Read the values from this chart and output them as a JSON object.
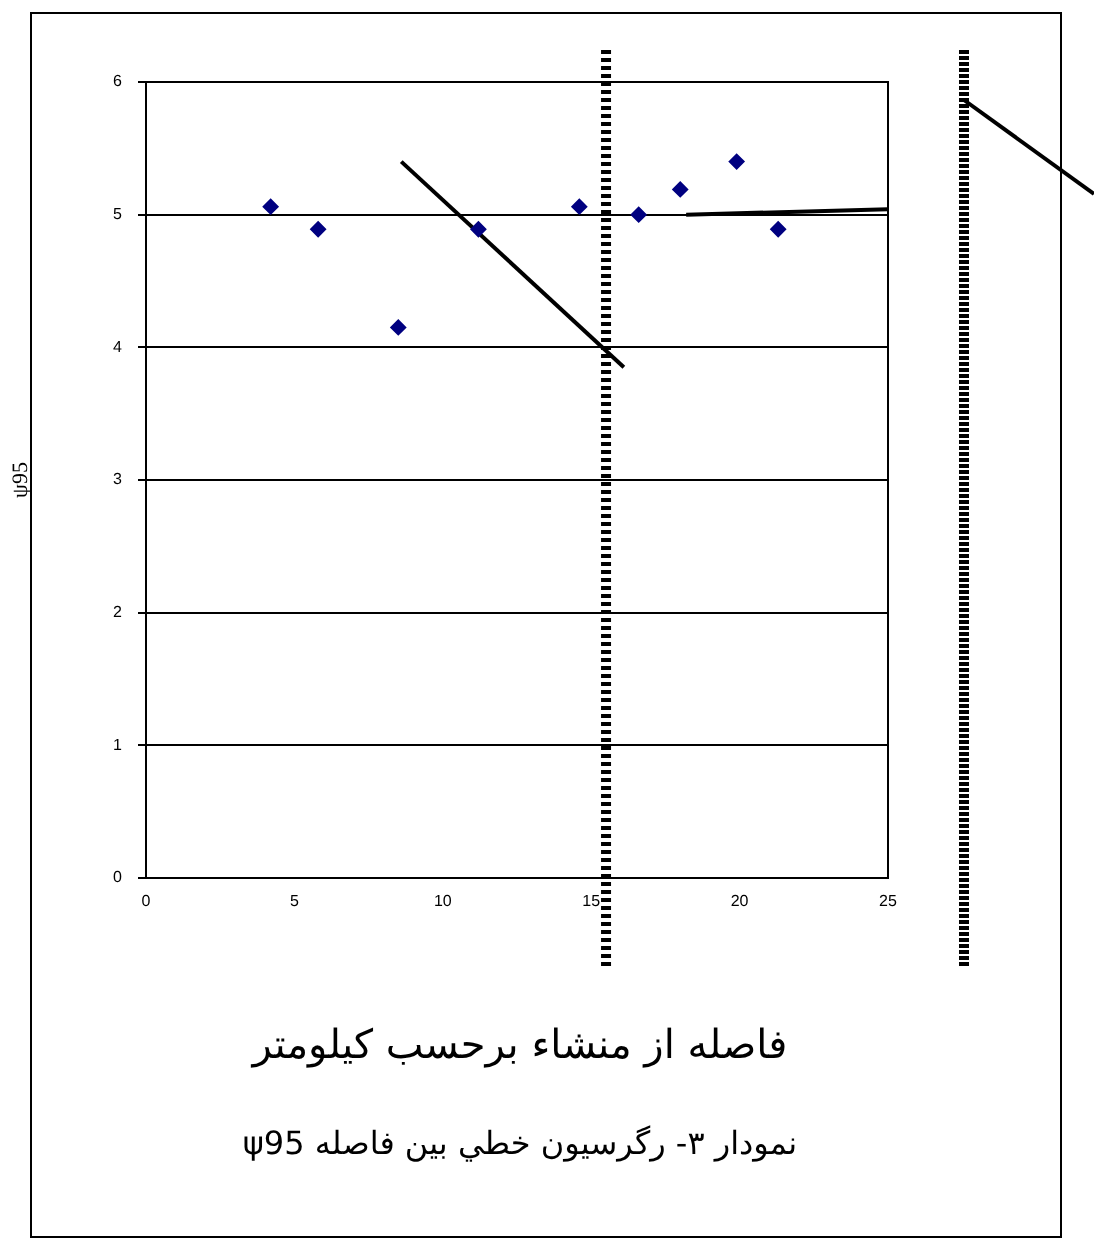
{
  "chart_data": {
    "type": "scatter",
    "xlabel": "فاصله از منشاء برحسب کيلومتر",
    "ylabel": "ψ95",
    "annotations": [
      "نمودار ۳- رگرسيون خطي بين فاصله ψ95"
    ],
    "xlim": [
      0,
      25
    ],
    "xticks": [
      0,
      5,
      10,
      15,
      20,
      25
    ],
    "ylim": [
      0,
      6
    ],
    "yticks": [
      0,
      1,
      2,
      3,
      4,
      5,
      6
    ],
    "grid": "y",
    "legend": false,
    "marker": "diamond",
    "series": [
      {
        "type": "scatter",
        "color": "#000080",
        "x": [
          4.2,
          5.8,
          8.5,
          11.2,
          14.6,
          16.6,
          18.0,
          19.9,
          21.3
        ],
        "values": [
          5.06,
          4.89,
          4.15,
          4.89,
          5.06,
          5.0,
          5.19,
          5.4,
          4.89
        ]
      },
      {
        "type": "line",
        "color": "#000000",
        "marker": "none",
        "x": [
          8.6,
          16.1
        ],
        "values": [
          5.4,
          3.85
        ]
      },
      {
        "type": "line",
        "color": "#000000",
        "marker": "none",
        "x": [
          18.2,
          25
        ],
        "values": [
          5.0,
          5.04
        ]
      }
    ],
    "ref_lines": [
      {
        "axis": "x",
        "value": 15.5,
        "color": "#000000",
        "line_style": "dotted"
      }
    ]
  }
}
